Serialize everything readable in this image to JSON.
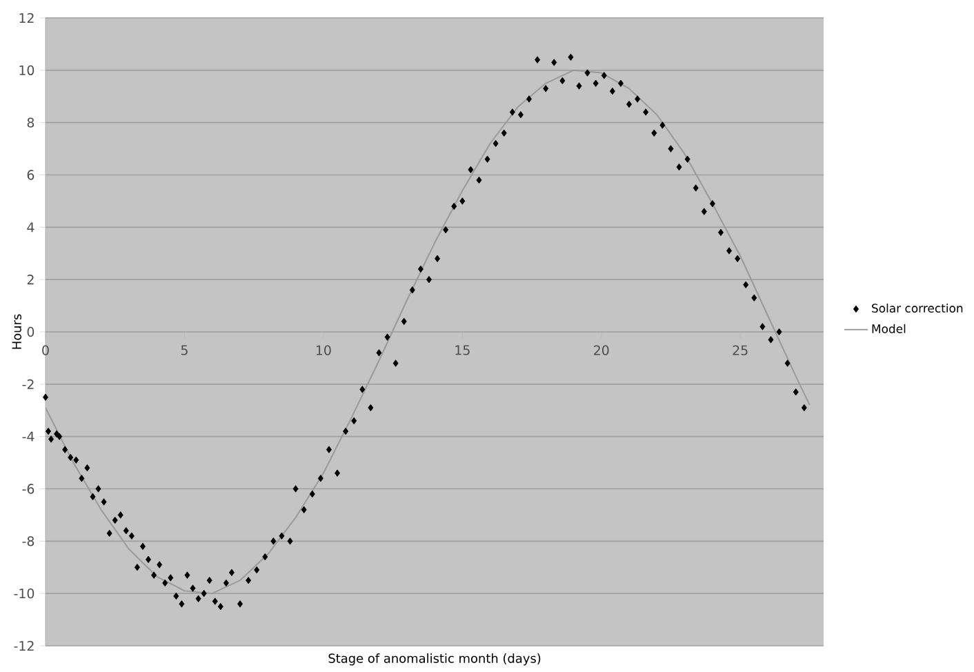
{
  "chart_data": {
    "type": "scatter",
    "xlabel": "Stage of anomalistic month (days)",
    "ylabel": "Hours",
    "xlim": [
      0,
      28
    ],
    "ylim": [
      -12,
      12
    ],
    "xticks": [
      0,
      5,
      10,
      15,
      20,
      25
    ],
    "yticks": [
      -12,
      -10,
      -8,
      -6,
      -4,
      -2,
      0,
      2,
      4,
      6,
      8,
      10,
      12
    ],
    "grid": "y",
    "legend": "right",
    "series": [
      {
        "name": "Solar correction",
        "marker": "diamond",
        "color": "#000000",
        "x": [
          0,
          0.1,
          0.2,
          0.4,
          0.5,
          0.7,
          0.9,
          1.1,
          1.3,
          1.5,
          1.7,
          1.9,
          2.1,
          2.3,
          2.5,
          2.7,
          2.9,
          3.1,
          3.3,
          3.5,
          3.7,
          3.9,
          4.1,
          4.3,
          4.5,
          4.7,
          4.9,
          5.1,
          5.3,
          5.5,
          5.7,
          5.9,
          6.1,
          6.3,
          6.5,
          6.7,
          7.0,
          7.3,
          7.6,
          7.9,
          8.2,
          8.5,
          8.8,
          9.0,
          9.3,
          9.6,
          9.9,
          10.2,
          10.5,
          10.8,
          11.1,
          11.4,
          11.7,
          12.0,
          12.3,
          12.6,
          12.9,
          13.2,
          13.5,
          13.8,
          14.1,
          14.4,
          14.7,
          15.0,
          15.3,
          15.6,
          15.9,
          16.2,
          16.5,
          16.8,
          17.1,
          17.4,
          17.7,
          18.0,
          18.3,
          18.6,
          18.9,
          19.2,
          19.5,
          19.8,
          20.1,
          20.4,
          20.7,
          21.0,
          21.3,
          21.6,
          21.9,
          22.2,
          22.5,
          22.8,
          23.1,
          23.4,
          23.7,
          24.0,
          24.3,
          24.6,
          24.9,
          25.2,
          25.5,
          25.8,
          26.1,
          26.4,
          26.7,
          27.0,
          27.3
        ],
        "values": [
          -2.5,
          -3.8,
          -4.1,
          -3.9,
          -4.0,
          -4.5,
          -4.8,
          -4.9,
          -5.6,
          -5.2,
          -6.3,
          -6.0,
          -6.5,
          -7.7,
          -7.2,
          -7.0,
          -7.6,
          -7.8,
          -9.0,
          -8.2,
          -8.7,
          -9.3,
          -8.9,
          -9.6,
          -9.4,
          -10.1,
          -10.4,
          -9.3,
          -9.8,
          -10.2,
          -10.0,
          -9.5,
          -10.3,
          -10.5,
          -9.6,
          -9.2,
          -10.4,
          -9.5,
          -9.1,
          -8.6,
          -8.0,
          -7.8,
          -8.0,
          -6.0,
          -6.8,
          -6.2,
          -5.6,
          -4.5,
          -5.4,
          -3.8,
          -3.4,
          -2.2,
          -2.9,
          -0.8,
          -0.2,
          -1.2,
          0.4,
          1.6,
          2.4,
          2.0,
          2.8,
          3.9,
          4.8,
          5.0,
          6.2,
          5.8,
          6.6,
          7.2,
          7.6,
          8.4,
          8.3,
          8.9,
          10.4,
          9.3,
          10.3,
          9.6,
          10.5,
          9.4,
          9.9,
          9.5,
          9.8,
          9.2,
          9.5,
          8.7,
          8.9,
          8.4,
          7.6,
          7.9,
          7.0,
          6.3,
          6.6,
          5.5,
          4.6,
          4.9,
          3.8,
          3.1,
          2.8,
          1.8,
          1.3,
          0.2,
          -0.3,
          0.0,
          -1.2,
          -2.3,
          -2.9
        ]
      },
      {
        "name": "Model",
        "type": "line",
        "marker": "none",
        "color": "#9a9a9a",
        "x": [
          0,
          1,
          2,
          3,
          4,
          5,
          6,
          7,
          8,
          9,
          10,
          11,
          12,
          13,
          14,
          15,
          16,
          17,
          18,
          19,
          20,
          21,
          22,
          23,
          24,
          25,
          26,
          27,
          27.5
        ],
        "values": [
          -2.9,
          -5.0,
          -6.8,
          -8.3,
          -9.35,
          -9.9,
          -10.0,
          -9.5,
          -8.5,
          -7.1,
          -5.4,
          -3.3,
          -1.1,
          1.2,
          3.4,
          5.4,
          7.2,
          8.6,
          9.5,
          10.0,
          9.9,
          9.3,
          8.3,
          6.8,
          4.9,
          2.9,
          0.6,
          -1.7,
          -2.8
        ]
      }
    ]
  }
}
